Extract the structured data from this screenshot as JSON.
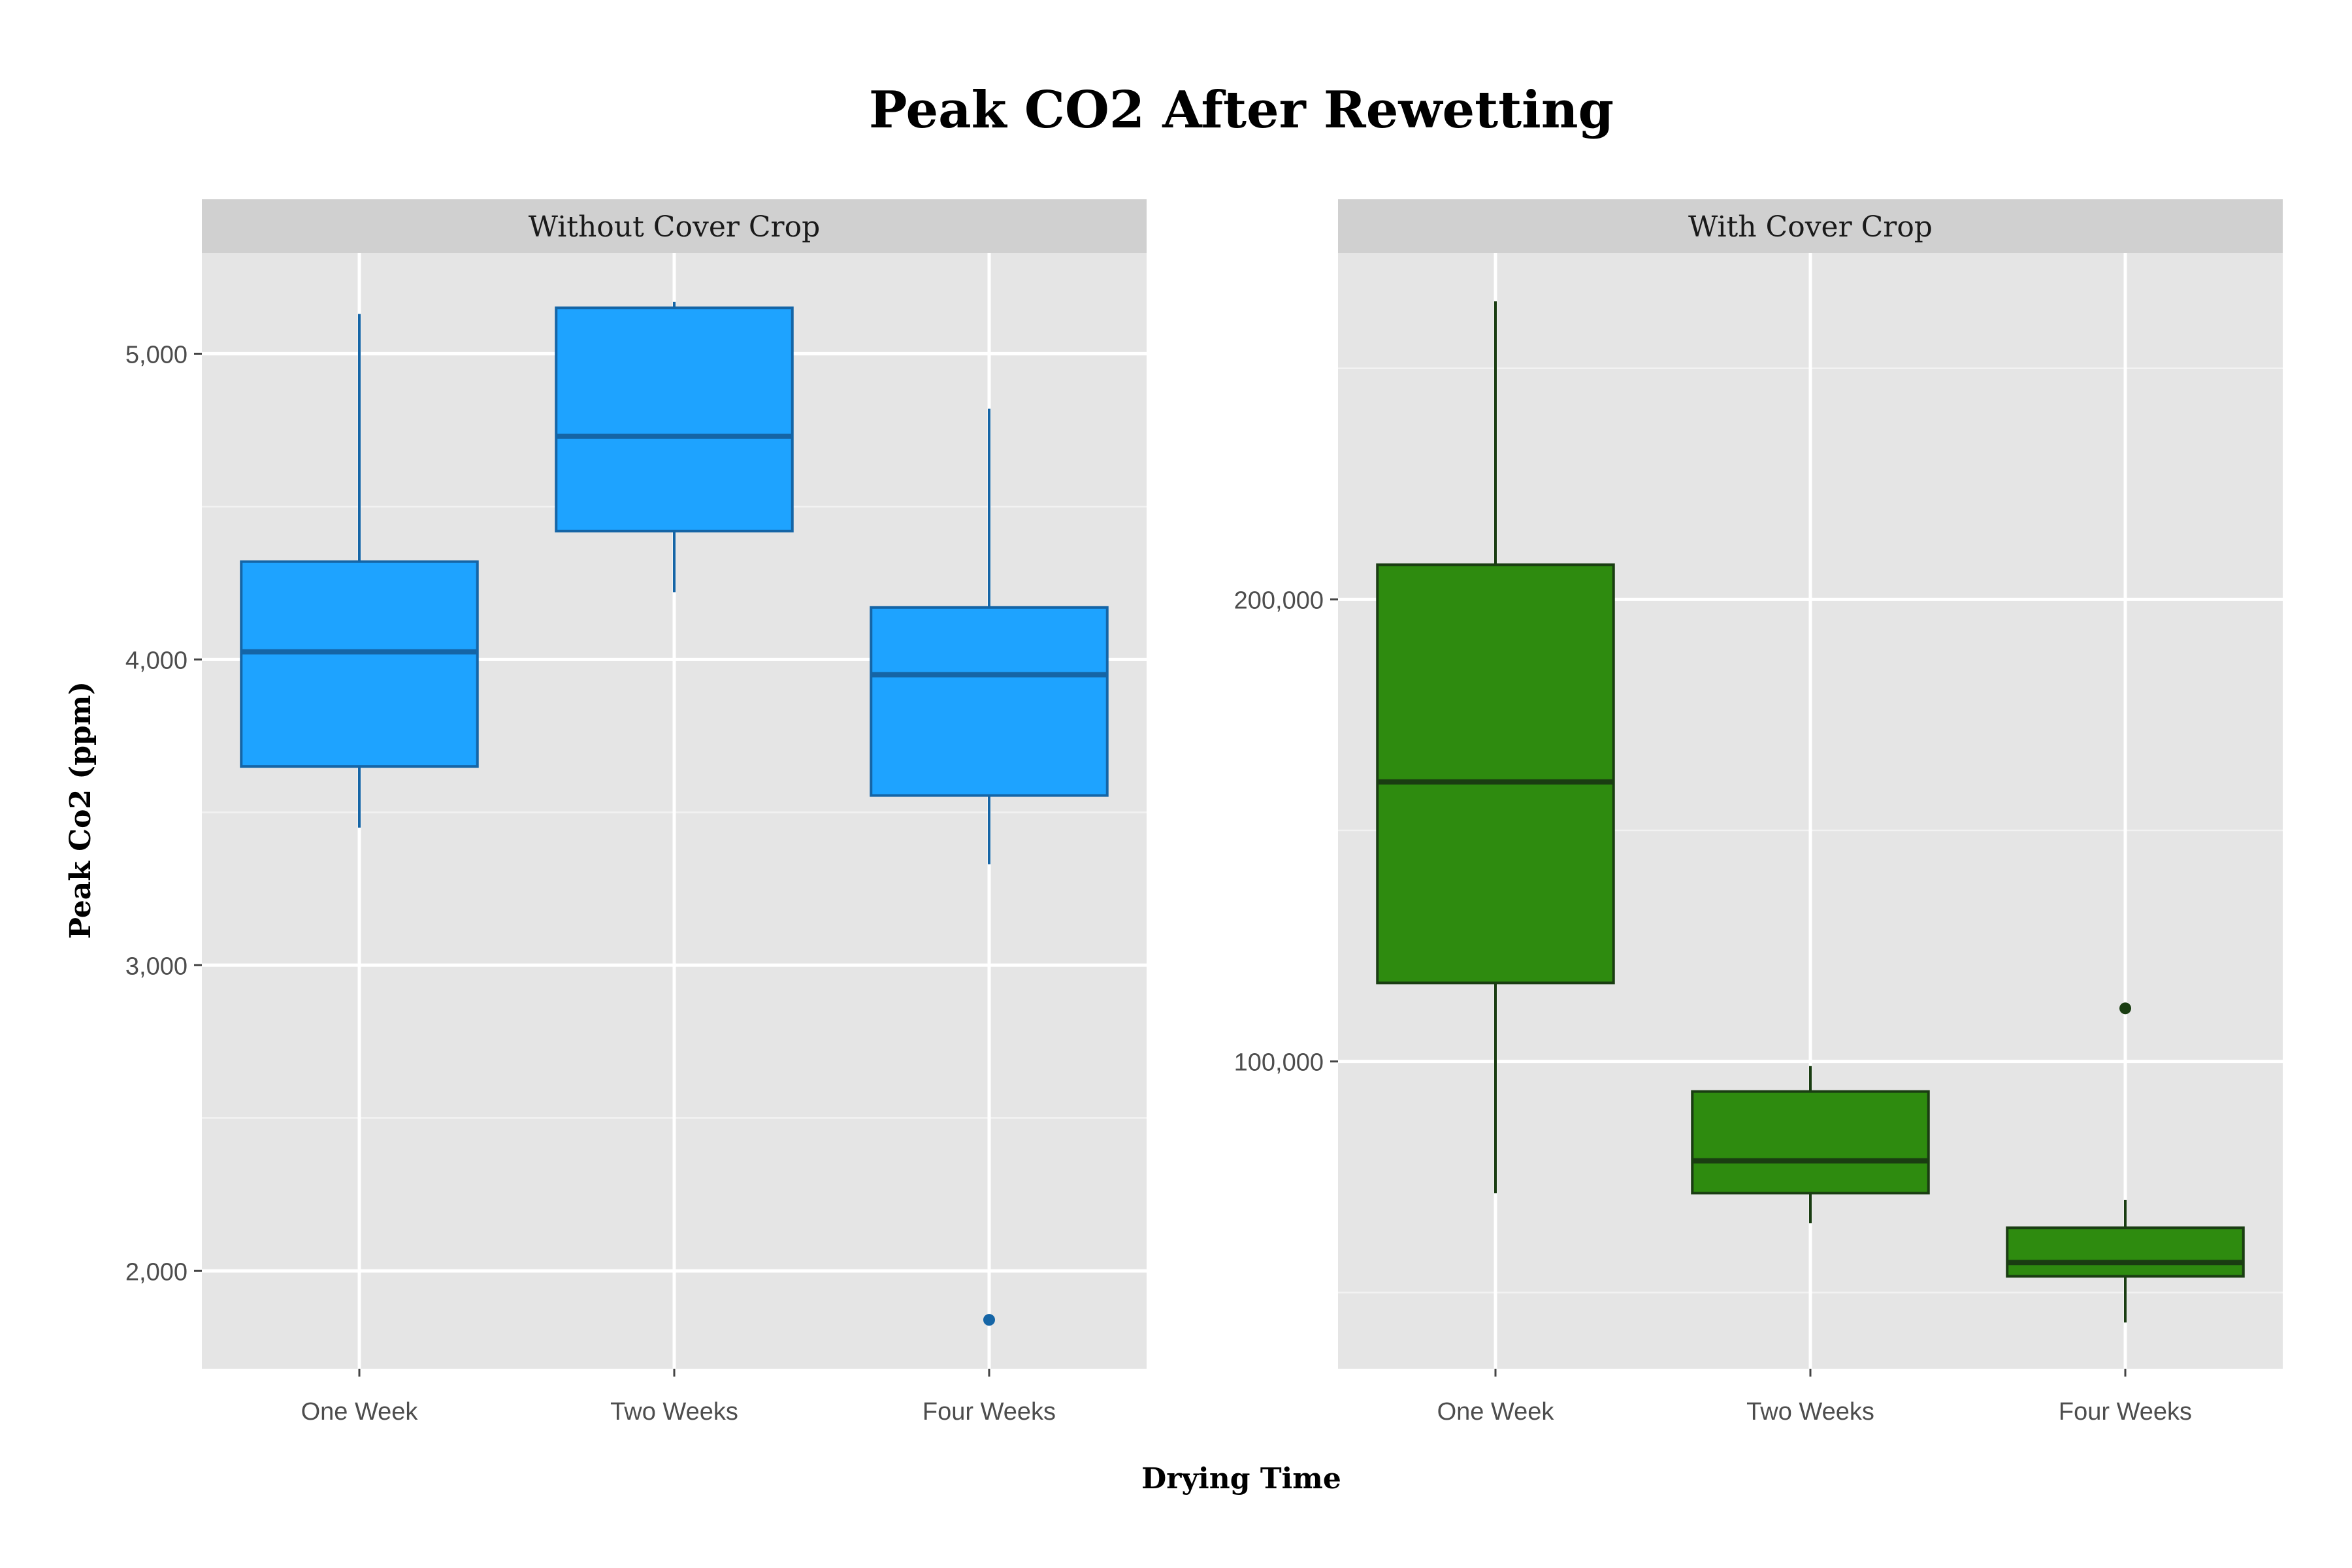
{
  "title": "Peak CO2 After Rewetting",
  "xlabel": "Drying Time",
  "ylabel": "Peak Co2 (ppm)",
  "chart_data": [
    {
      "type": "boxplot",
      "facet": "Without Cover Crop",
      "categories": [
        "One Week",
        "Two Weeks",
        "Four Weeks"
      ],
      "ylim": [
        1680,
        5330
      ],
      "yticks": [
        2000,
        3000,
        4000,
        5000
      ],
      "ytick_labels": [
        "2,000",
        "3,000",
        "4,000",
        "5,000"
      ],
      "fill": "#1ea3ff",
      "stroke": "#1565a6",
      "boxes": [
        {
          "category": "One Week",
          "min": 3450,
          "q1": 3650,
          "median": 4025,
          "q3": 4320,
          "max": 5130,
          "outliers": []
        },
        {
          "category": "Two Weeks",
          "min": 4220,
          "q1": 4420,
          "median": 4730,
          "q3": 5150,
          "max": 5170,
          "outliers": []
        },
        {
          "category": "Four Weeks",
          "min": 3330,
          "q1": 3555,
          "median": 3950,
          "q3": 4170,
          "max": 4820,
          "outliers": [
            1840
          ]
        }
      ]
    },
    {
      "type": "boxplot",
      "facet": "With Cover Crop",
      "categories": [
        "One Week",
        "Two Weeks",
        "Four Weeks"
      ],
      "ylim": [
        33500,
        275000
      ],
      "yticks": [
        100000,
        200000
      ],
      "ytick_labels": [
        "100,000",
        "200,000"
      ],
      "fill": "#2e8b0f",
      "stroke": "#1a3d12",
      "boxes": [
        {
          "category": "One Week",
          "min": 71500,
          "q1": 117000,
          "median": 160500,
          "q3": 207500,
          "max": 264500,
          "outliers": []
        },
        {
          "category": "Two Weeks",
          "min": 65000,
          "q1": 71500,
          "median": 78500,
          "q3": 93500,
          "max": 99000,
          "outliers": []
        },
        {
          "category": "Four Weeks",
          "min": 43500,
          "q1": 53500,
          "median": 56500,
          "q3": 64000,
          "max": 70000,
          "outliers": [
            111500
          ]
        }
      ]
    }
  ]
}
